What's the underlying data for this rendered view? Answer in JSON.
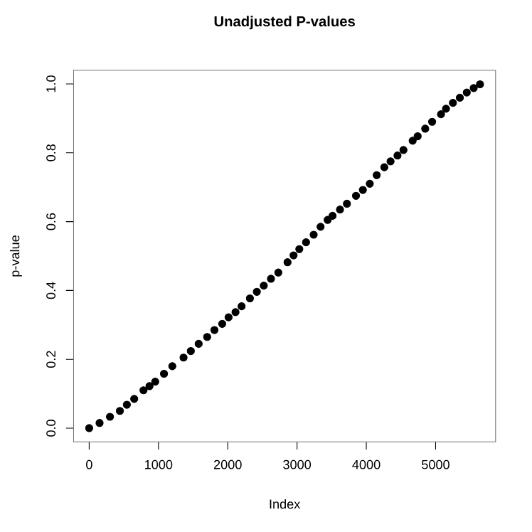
{
  "chart_data": {
    "type": "scatter",
    "title": "Unadjusted P-values",
    "xlabel": "Index",
    "ylabel": "p-value",
    "x": [
      0,
      150,
      300,
      443,
      544,
      650,
      784,
      870,
      953,
      1080,
      1200,
      1362,
      1467,
      1580,
      1703,
      1808,
      1920,
      2012,
      2112,
      2200,
      2320,
      2420,
      2520,
      2624,
      2730,
      2863,
      2950,
      3033,
      3130,
      3240,
      3340,
      3442,
      3513,
      3620,
      3720,
      3851,
      3950,
      4050,
      4150,
      4260,
      4350,
      4450,
      4536,
      4669,
      4741,
      4850,
      4950,
      5078,
      5150,
      5250,
      5350,
      5450,
      5550,
      5641
    ],
    "values": [
      0,
      0.015,
      0.033,
      0.05,
      0.068,
      0.085,
      0.11,
      0.122,
      0.135,
      0.158,
      0.18,
      0.205,
      0.224,
      0.245,
      0.265,
      0.285,
      0.303,
      0.322,
      0.337,
      0.354,
      0.377,
      0.396,
      0.414,
      0.434,
      0.452,
      0.482,
      0.502,
      0.52,
      0.54,
      0.562,
      0.585,
      0.605,
      0.617,
      0.635,
      0.652,
      0.675,
      0.692,
      0.71,
      0.735,
      0.758,
      0.775,
      0.792,
      0.808,
      0.835,
      0.848,
      0.87,
      0.89,
      0.912,
      0.928,
      0.945,
      0.96,
      0.975,
      0.988,
      0.999
    ],
    "color": "#000000",
    "marker": "circle",
    "xlim": [
      -225,
      5866
    ],
    "ylim": [
      -0.04,
      1.04
    ],
    "xticks": [
      0,
      1000,
      2000,
      3000,
      4000,
      5000
    ],
    "yticks": [
      {
        "value": 0,
        "label": "0.0"
      },
      {
        "value": 0.2,
        "label": "0.2"
      },
      {
        "value": 0.4,
        "label": "0.4"
      },
      {
        "value": 0.6,
        "label": "0.6"
      },
      {
        "value": 0.8,
        "label": "0.8"
      },
      {
        "value": 1,
        "label": "1.0"
      }
    ]
  }
}
